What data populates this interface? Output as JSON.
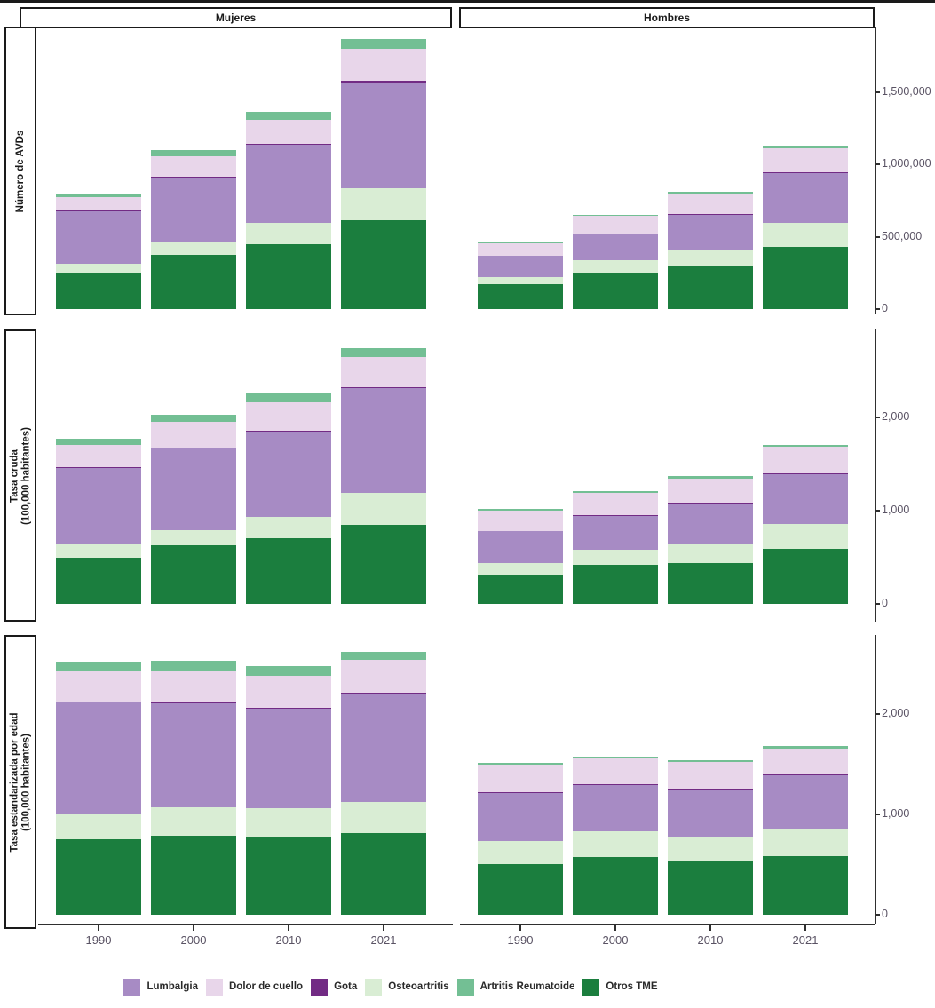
{
  "figure": {
    "background": "#ffffff",
    "border_color": "#1a1a1a",
    "axis_line_color": "#2f2f2f",
    "axis_text_color": "#5a5364"
  },
  "facet_columns": {
    "left": "Mujeres",
    "right": "Hombres"
  },
  "facet_rows": [
    {
      "line1": "Número de AVDs",
      "line2": ""
    },
    {
      "line1": "Tasa cruda",
      "line2": "(100,000 habitantes)"
    },
    {
      "line1": "Tasa estandarizada por edad",
      "line2": "(100,000 habitantes)"
    }
  ],
  "legend": [
    {
      "label": "Lumbalgia",
      "color": "#a78bc4"
    },
    {
      "label": "Dolor de cuello",
      "color": "#e8d6ea"
    },
    {
      "label": "Gota",
      "color": "#722b84"
    },
    {
      "label": "Osteoartritis",
      "color": "#d9edd4"
    },
    {
      "label": "Artritis Reumatoide",
      "color": "#73bf94"
    },
    {
      "label": "Otros TME",
      "color": "#1b7e3e"
    }
  ],
  "chart_data": {
    "type": "bar",
    "stacked": true,
    "grid": false,
    "legend_position": "bottom",
    "categories": [
      "1990",
      "2000",
      "2010",
      "2021"
    ],
    "stack_order_bottom_to_top": [
      "Otros TME",
      "Osteoartritis",
      "Lumbalgia",
      "Gota",
      "Dolor de cuello",
      "Artritis Reumatoide"
    ],
    "y_axes": [
      {
        "row": "Número de AVDs",
        "ylim": [
          0,
          1950000
        ],
        "ticks": [
          0,
          500000,
          1000000,
          1500000
        ],
        "tick_labels": [
          "0",
          "500,000",
          "1,000,000",
          "1,500,000"
        ]
      },
      {
        "row": "Tasa cruda (100,000 habitantes)",
        "ylim": [
          0,
          2950
        ],
        "ticks": [
          0,
          1000,
          2000
        ],
        "tick_labels": [
          "0",
          "1,000",
          "2,000"
        ]
      },
      {
        "row": "Tasa estandarizada por edad (100,000 habitantes)",
        "ylim": [
          0,
          2800
        ],
        "ticks": [
          0,
          1000,
          2000
        ],
        "tick_labels": [
          "0",
          "1,000",
          "2,000"
        ]
      }
    ],
    "panels": [
      {
        "row": "Número de AVDs",
        "col": "Mujeres",
        "series": {
          "Otros TME": [
            250000,
            373000,
            447000,
            612000
          ],
          "Osteoartritis": [
            61000,
            86000,
            147000,
            220000
          ],
          "Lumbalgia": [
            361000,
            447000,
            539000,
            734000
          ],
          "Gota": [
            6000,
            7000,
            8000,
            10000
          ],
          "Dolor de cuello": [
            92000,
            140000,
            165000,
            220000
          ],
          "Artritis Reumatoide": [
            30000,
            43000,
            55000,
            67000
          ]
        }
      },
      {
        "row": "Número de AVDs",
        "col": "Hombres",
        "series": {
          "Otros TME": [
            171000,
            251000,
            300000,
            428000
          ],
          "Osteoartritis": [
            49000,
            86000,
            104000,
            165000
          ],
          "Lumbalgia": [
            147000,
            178000,
            245000,
            343000
          ],
          "Gota": [
            4000,
            5000,
            5000,
            6000
          ],
          "Dolor de cuello": [
            86000,
            122000,
            141000,
            171000
          ],
          "Artritis Reumatoide": [
            12000,
            10000,
            12000,
            18000
          ]
        }
      },
      {
        "row": "Tasa cruda (100,000 habitantes)",
        "col": "Mujeres",
        "series": {
          "Otros TME": [
            496,
            626,
            701,
            851
          ],
          "Osteoartritis": [
            150,
            168,
            234,
            337
          ],
          "Lumbalgia": [
            813,
            870,
            916,
            1122
          ],
          "Gota": [
            9,
            9,
            10,
            12
          ],
          "Dolor de cuello": [
            234,
            280,
            299,
            327
          ],
          "Artritis Reumatoide": [
            65,
            75,
            94,
            94
          ]
        }
      },
      {
        "row": "Tasa cruda (100,000 habitantes)",
        "col": "Hombres",
        "series": {
          "Otros TME": [
            318,
            421,
            439,
            589
          ],
          "Osteoartritis": [
            122,
            159,
            196,
            271
          ],
          "Lumbalgia": [
            337,
            365,
            439,
            533
          ],
          "Gota": [
            6,
            8,
            8,
            10
          ],
          "Dolor de cuello": [
            215,
            234,
            262,
            280
          ],
          "Artritis Reumatoide": [
            19,
            19,
            28,
            19
          ]
        }
      },
      {
        "row": "Tasa estandarizada por edad (100,000 habitantes)",
        "col": "Mujeres",
        "series": {
          "Otros TME": [
            752,
            788,
            779,
            814
          ],
          "Osteoartritis": [
            257,
            283,
            283,
            310
          ],
          "Lumbalgia": [
            1106,
            1035,
            991,
            1080
          ],
          "Gota": [
            12,
            12,
            10,
            10
          ],
          "Dolor de cuello": [
            310,
            310,
            319,
            327
          ],
          "Artritis Reumatoide": [
            89,
            106,
            97,
            80
          ]
        }
      },
      {
        "row": "Tasa estandarizada por edad (100,000 habitantes)",
        "col": "Hombres",
        "series": {
          "Otros TME": [
            504,
            575,
            531,
            584
          ],
          "Osteoartritis": [
            230,
            257,
            248,
            266
          ],
          "Lumbalgia": [
            478,
            460,
            469,
            540
          ],
          "Gota": [
            6,
            9,
            9,
            9
          ],
          "Dolor de cuello": [
            274,
            257,
            266,
            257
          ],
          "Artritis Reumatoide": [
            18,
            18,
            18,
            27
          ]
        }
      }
    ]
  }
}
